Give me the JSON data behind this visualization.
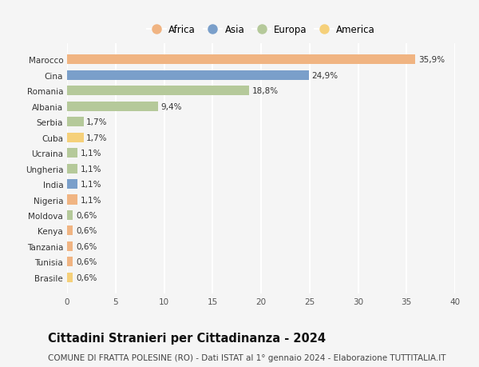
{
  "countries": [
    "Brasile",
    "Tunisia",
    "Tanzania",
    "Kenya",
    "Moldova",
    "Nigeria",
    "India",
    "Ungheria",
    "Ucraina",
    "Cuba",
    "Serbia",
    "Albania",
    "Romania",
    "Cina",
    "Marocco"
  ],
  "values": [
    0.6,
    0.6,
    0.6,
    0.6,
    0.6,
    1.1,
    1.1,
    1.1,
    1.1,
    1.7,
    1.7,
    9.4,
    18.8,
    24.9,
    35.9
  ],
  "labels": [
    "0,6%",
    "0,6%",
    "0,6%",
    "0,6%",
    "0,6%",
    "1,1%",
    "1,1%",
    "1,1%",
    "1,1%",
    "1,7%",
    "1,7%",
    "9,4%",
    "18,8%",
    "24,9%",
    "35,9%"
  ],
  "continents": [
    "America",
    "Africa",
    "Africa",
    "Africa",
    "Europa",
    "Africa",
    "Asia",
    "Europa",
    "Europa",
    "America",
    "Europa",
    "Europa",
    "Europa",
    "Asia",
    "Africa"
  ],
  "continent_colors": {
    "Africa": "#F0B482",
    "Asia": "#7A9FCA",
    "Europa": "#B5C99A",
    "America": "#F5D07A"
  },
  "legend_order": [
    "Africa",
    "Asia",
    "Europa",
    "America"
  ],
  "title": "Cittadini Stranieri per Cittadinanza - 2024",
  "subtitle": "COMUNE DI FRATTA POLESINE (RO) - Dati ISTAT al 1° gennaio 2024 - Elaborazione TUTTITALIA.IT",
  "xlim": [
    0,
    40
  ],
  "xticks": [
    0,
    5,
    10,
    15,
    20,
    25,
    30,
    35,
    40
  ],
  "background_color": "#f5f5f5",
  "grid_color": "#ffffff",
  "title_fontsize": 10.5,
  "subtitle_fontsize": 7.5,
  "bar_label_fontsize": 7.5,
  "tick_label_fontsize": 7.5,
  "legend_fontsize": 8.5,
  "bar_height": 0.62
}
